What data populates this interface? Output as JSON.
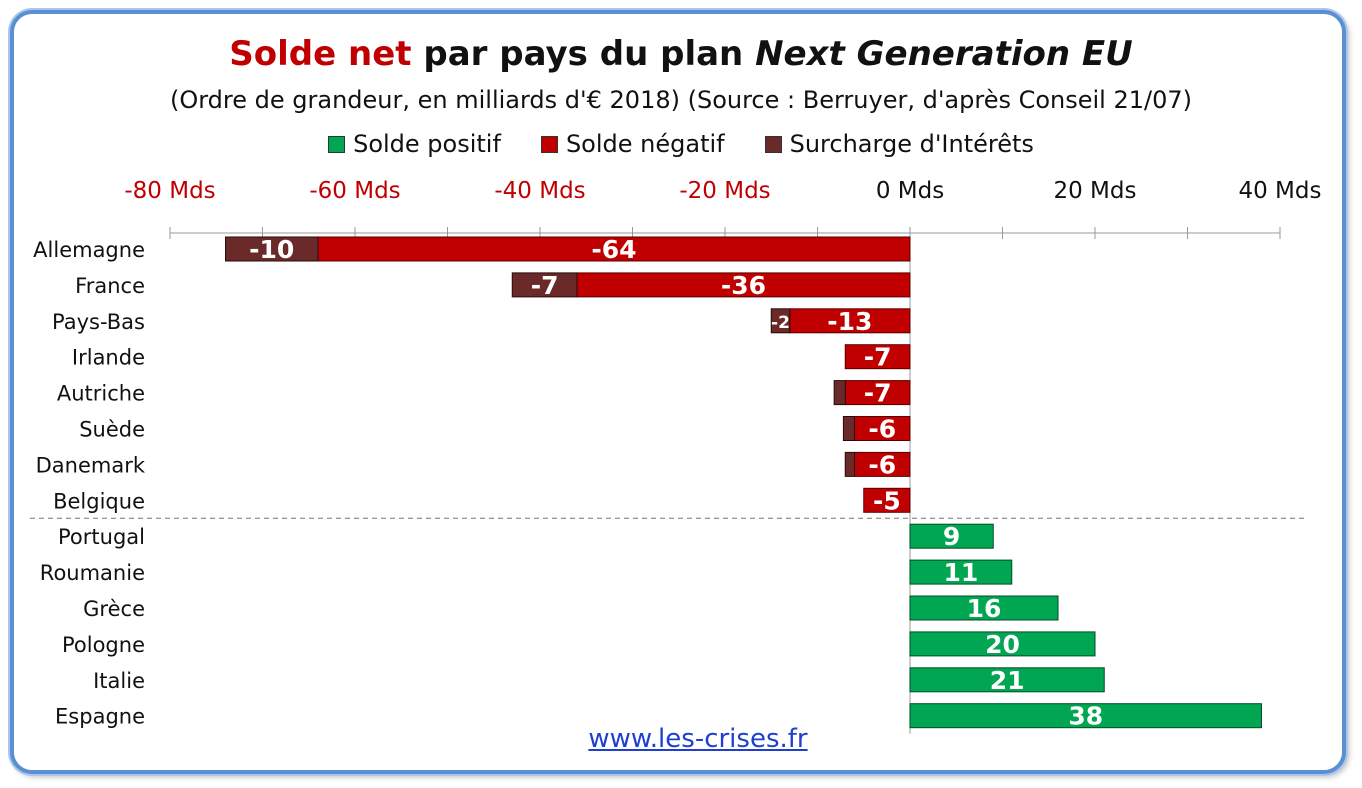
{
  "chart_data": {
    "type": "bar",
    "orientation": "horizontal",
    "stacked": true,
    "title_parts": {
      "highlight": "Solde net",
      "middle": " par pays du plan ",
      "italic": "Next Generation EU"
    },
    "subtitle": "(Ordre de grandeur, en milliards d'€ 2018) (Source : Berruyer, d'après Conseil 21/07)",
    "xlim": [
      -80,
      40
    ],
    "x_ticks": [
      {
        "value": -80,
        "label": "-80 Mds"
      },
      {
        "value": -60,
        "label": "-60 Mds"
      },
      {
        "value": -40,
        "label": "-40 Mds"
      },
      {
        "value": -20,
        "label": "-20 Mds"
      },
      {
        "value": 0,
        "label": "0 Mds"
      },
      {
        "value": 20,
        "label": "20 Mds"
      },
      {
        "value": 40,
        "label": "40 Mds"
      }
    ],
    "legend": [
      {
        "name": "Solde positif",
        "color": "#00a651"
      },
      {
        "name": "Solde négatif",
        "color": "#c00000"
      },
      {
        "name": "Surcharge d'Intérêts",
        "color": "#6b2a2a"
      }
    ],
    "categories": [
      "Allemagne",
      "France",
      "Pays-Bas",
      "Irlande",
      "Autriche",
      "Suède",
      "Danemark",
      "Belgique",
      "Portugal",
      "Roumanie",
      "Grèce",
      "Pologne",
      "Italie",
      "Espagne"
    ],
    "series": [
      {
        "name": "Solde positif",
        "color": "#00a651",
        "values": [
          0,
          0,
          0,
          0,
          0,
          0,
          0,
          0,
          9,
          11,
          16,
          20,
          21,
          38
        ],
        "labels": [
          "",
          "",
          "",
          "",
          "",
          "",
          "",
          "",
          "9",
          "11",
          "16",
          "20",
          "21",
          "38"
        ]
      },
      {
        "name": "Solde négatif",
        "color": "#c00000",
        "values": [
          -64,
          -36,
          -13,
          -7,
          -7,
          -6,
          -6,
          -5,
          0,
          0,
          0,
          0,
          0,
          0
        ],
        "labels": [
          "-64",
          "-36",
          "-13",
          "-7",
          "-7",
          "-6",
          "-6",
          "-5",
          "",
          "",
          "",
          "",
          "",
          ""
        ]
      },
      {
        "name": "Surcharge d'Intérêts",
        "color": "#6b2a2a",
        "values": [
          -10,
          -7,
          -2,
          0,
          -1.2,
          -1.2,
          -1,
          0,
          0,
          0,
          0,
          0,
          0,
          0
        ],
        "labels": [
          "-10",
          "-7",
          "-2",
          "",
          "",
          "",
          "",
          "",
          "",
          "",
          "",
          "",
          "",
          ""
        ]
      }
    ],
    "separator_after_category": "Belgique",
    "tick_label_colors": {
      "negative": "#c00000",
      "non_negative": "#111111"
    }
  },
  "footer": {
    "link": "www.les-crises.fr"
  }
}
